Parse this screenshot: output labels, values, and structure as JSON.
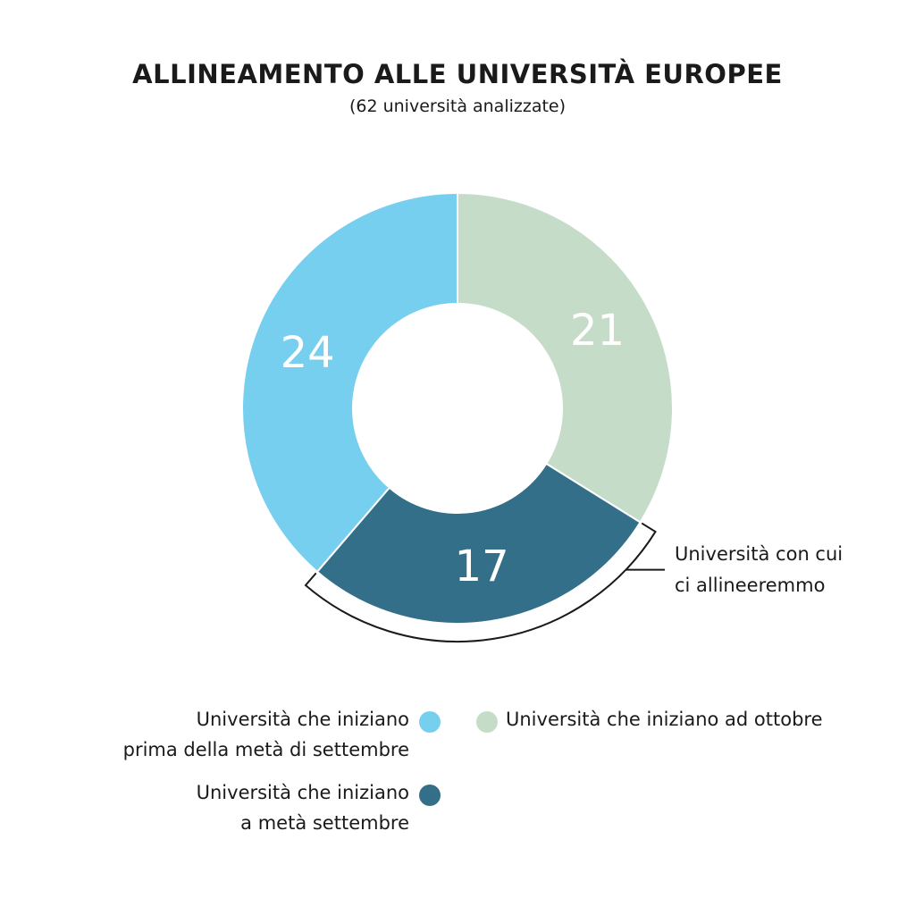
{
  "title": "ALLINEAMENTO ALLE UNIVERSITÀ EUROPEE",
  "subtitle": "(62 università analizzate)",
  "colors": {
    "early_september": "#77cfef",
    "mid_september": "#336f88",
    "october": "#c4dcc8",
    "bracket": "#1a1a1a"
  },
  "chart_data": {
    "type": "pie",
    "style": "donut",
    "start": "12 o'clock, clockwise",
    "slices": [
      {
        "label": "Università che iniziano ad ottobre",
        "value": 21,
        "display": "21",
        "color": "#c4dcc8"
      },
      {
        "label": "Università che iniziano a metà settembre",
        "value": 17,
        "display": "17",
        "color": "#336f88"
      },
      {
        "label": "Università che iniziano prima della metà di settembre",
        "value": 24,
        "display": "24",
        "color": "#77cfef"
      }
    ],
    "annotation": {
      "text_line1": "Università con cui",
      "text_line2": "ci allineeremmo",
      "target": "Università che iniziano a metà settembre"
    }
  },
  "legend": {
    "early_line1": "Università che iniziano",
    "early_line2": "prima della metà di settembre",
    "mid_line1": "Università che iniziano",
    "mid_line2": "a metà settembre",
    "october": "Università che iniziano ad ottobre"
  }
}
